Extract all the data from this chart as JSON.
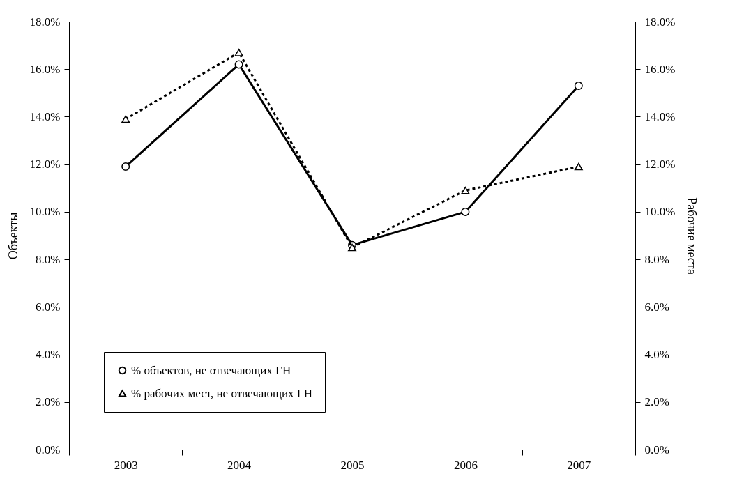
{
  "chart_data": {
    "type": "line",
    "ylabel": "Объекты",
    "y2label": "Рабочие места",
    "categories": [
      "2003",
      "2004",
      "2005",
      "2006",
      "2007"
    ],
    "series": [
      {
        "name": "% объектов, не отвечающих ГН",
        "color": "#000000",
        "marker": "circle",
        "line_style": "solid",
        "values": [
          11.9,
          16.2,
          8.6,
          10.0,
          15.3
        ]
      },
      {
        "name": "% рабочих мест, не отвечающих ГН",
        "color": "#000000",
        "marker": "triangle",
        "line_style": "dashed",
        "axis": "y2",
        "values": [
          13.9,
          16.7,
          8.5,
          10.9,
          11.9
        ]
      }
    ],
    "ylim": [
      0,
      18
    ],
    "yticks": [
      {
        "value": 0,
        "label": "0.0%"
      },
      {
        "value": 2,
        "label": "2.0%"
      },
      {
        "value": 4,
        "label": "4.0%"
      },
      {
        "value": 6,
        "label": "6.0%"
      },
      {
        "value": 8,
        "label": "8.0%"
      },
      {
        "value": 10,
        "label": "10.0%"
      },
      {
        "value": 12,
        "label": "12.0%"
      },
      {
        "value": 14,
        "label": "14.0%"
      },
      {
        "value": 16,
        "label": "16.0%"
      },
      {
        "value": 18,
        "label": "18.0%"
      }
    ],
    "y2lim": [
      0,
      18
    ],
    "y2ticks": [
      {
        "value": 0,
        "label": "0.0%"
      },
      {
        "value": 2,
        "label": "2.0%"
      },
      {
        "value": 4,
        "label": "4.0%"
      },
      {
        "value": 6,
        "label": "6.0%"
      },
      {
        "value": 8,
        "label": "8.0%"
      },
      {
        "value": 10,
        "label": "10.0%"
      },
      {
        "value": 12,
        "label": "12.0%"
      },
      {
        "value": 14,
        "label": "14.0%"
      },
      {
        "value": 16,
        "label": "16.0%"
      },
      {
        "value": 18,
        "label": "18.0%"
      }
    ],
    "grid": false,
    "legend": "bottom left"
  }
}
